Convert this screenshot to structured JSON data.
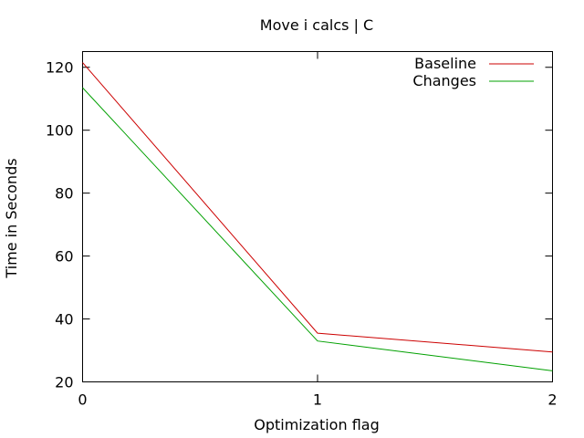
{
  "chart_data": {
    "type": "line",
    "title": "Move i calcs | C",
    "xlabel": "Optimization flag",
    "ylabel": "Time in Seconds",
    "x": [
      0,
      1,
      2
    ],
    "xlim": [
      0,
      2
    ],
    "ylim": [
      20,
      125
    ],
    "xticks": [
      0,
      1,
      2
    ],
    "yticks": [
      20,
      40,
      60,
      80,
      100,
      120
    ],
    "grid": false,
    "legend_position": "top-right",
    "series": [
      {
        "name": "Baseline",
        "color": "#cc0000",
        "values": [
          121.5,
          35.5,
          29.5
        ]
      },
      {
        "name": "Changes",
        "color": "#00a000",
        "values": [
          113.5,
          33,
          23.5
        ]
      }
    ]
  }
}
